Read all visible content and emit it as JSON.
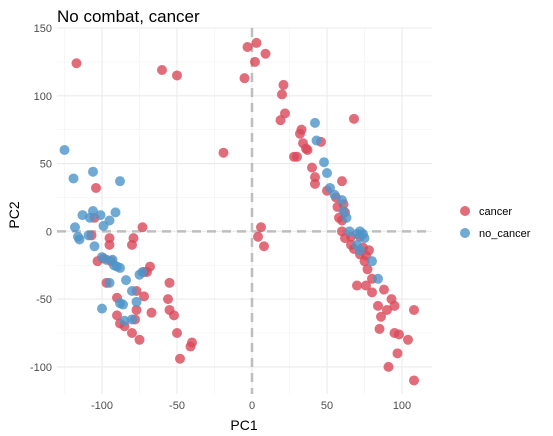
{
  "chart_data": {
    "type": "scatter",
    "title": "No combat, cancer",
    "xlabel": "PC1",
    "ylabel": "PC2",
    "xlim": [
      -130,
      120
    ],
    "ylim": [
      -120,
      150
    ],
    "x_ticks": [
      -100,
      -50,
      0,
      50,
      100
    ],
    "x_tick_labels": [
      "-100",
      "-50",
      "0",
      "50",
      "100"
    ],
    "y_ticks": [
      -100,
      -50,
      0,
      50,
      100,
      150
    ],
    "y_tick_labels": [
      "-100",
      "-50",
      "0",
      "50",
      "100",
      "150"
    ],
    "grid": true,
    "reference_lines": {
      "x": 0,
      "y": 0,
      "style": "dashed",
      "color": "#bebebe"
    },
    "legend_position": "right",
    "series": [
      {
        "name": "cancer",
        "color": "#d9485a",
        "points": [
          [
            -117,
            124
          ],
          [
            -60,
            119
          ],
          [
            -50,
            115
          ],
          [
            -3,
            136
          ],
          [
            -5,
            113
          ],
          [
            3,
            139
          ],
          [
            2,
            125
          ],
          [
            9,
            131
          ],
          [
            -19,
            58
          ],
          [
            21,
            108
          ],
          [
            20,
            101
          ],
          [
            19,
            82
          ],
          [
            22,
            87
          ],
          [
            28,
            55
          ],
          [
            32,
            72
          ],
          [
            33,
            75
          ],
          [
            34,
            65
          ],
          [
            30,
            55
          ],
          [
            36,
            61
          ],
          [
            37,
            60
          ],
          [
            42,
            40
          ],
          [
            42,
            35
          ],
          [
            40,
            47
          ],
          [
            46,
            66
          ],
          [
            50,
            30
          ],
          [
            68,
            83
          ],
          [
            60,
            37
          ],
          [
            56,
            25
          ],
          [
            61,
            20
          ],
          [
            57,
            18
          ],
          [
            62,
            14
          ],
          [
            58,
            10
          ],
          [
            60,
            8
          ],
          [
            66,
            -4
          ],
          [
            66,
            -10
          ],
          [
            68,
            -13
          ],
          [
            72,
            -17
          ],
          [
            76,
            -18
          ],
          [
            75,
            -22
          ],
          [
            78,
            -14
          ],
          [
            60,
            0
          ],
          [
            62,
            -5
          ],
          [
            72,
            -4
          ],
          [
            74,
            -12
          ],
          [
            77,
            -28
          ],
          [
            80,
            -35
          ],
          [
            70,
            -40
          ],
          [
            76,
            -40
          ],
          [
            80,
            -45
          ],
          [
            84,
            -55
          ],
          [
            88,
            -43
          ],
          [
            90,
            -58
          ],
          [
            86,
            -63
          ],
          [
            93,
            -50
          ],
          [
            95,
            -55
          ],
          [
            85,
            -72
          ],
          [
            95,
            -75
          ],
          [
            98,
            -76
          ],
          [
            108,
            -58
          ],
          [
            104,
            -80
          ],
          [
            97,
            -90
          ],
          [
            91,
            -100
          ],
          [
            108,
            -110
          ],
          [
            4,
            -4
          ],
          [
            6,
            3
          ],
          [
            8,
            -11
          ],
          [
            -104,
            32
          ],
          [
            -105,
            10
          ],
          [
            -107,
            -3
          ],
          [
            -103,
            -22
          ],
          [
            -99,
            -20
          ],
          [
            -95,
            -10
          ],
          [
            -94,
            -22
          ],
          [
            -90,
            -49
          ],
          [
            -90,
            -62
          ],
          [
            -88,
            -68
          ],
          [
            -85,
            -70
          ],
          [
            -80,
            -75
          ],
          [
            -78,
            -65
          ],
          [
            -75,
            -80
          ],
          [
            -77,
            -44
          ],
          [
            -72,
            -48
          ],
          [
            -67,
            -60
          ],
          [
            -72,
            -30
          ],
          [
            -70,
            -30
          ],
          [
            -68,
            -26
          ],
          [
            -73,
            3
          ],
          [
            -79,
            -5
          ],
          [
            -80,
            -10
          ],
          [
            -95,
            -5
          ],
          [
            -97,
            -38
          ],
          [
            -77,
            -58
          ],
          [
            -56,
            -50
          ],
          [
            -55,
            -38
          ],
          [
            -55,
            -58
          ],
          [
            -52,
            -62
          ],
          [
            -50,
            -75
          ],
          [
            -48,
            -94
          ],
          [
            -41,
            -85
          ],
          [
            -40,
            -82
          ]
        ]
      },
      {
        "name": "no_cancer",
        "color": "#4c95c9",
        "points": [
          [
            -125,
            60
          ],
          [
            -119,
            39
          ],
          [
            -106,
            44
          ],
          [
            -88,
            37
          ],
          [
            -113,
            12
          ],
          [
            -106,
            15
          ],
          [
            -108,
            10
          ],
          [
            -101,
            12
          ],
          [
            -99,
            4
          ],
          [
            -95,
            8
          ],
          [
            -91,
            14
          ],
          [
            -118,
            3
          ],
          [
            -116,
            -4
          ],
          [
            -115,
            -6
          ],
          [
            -109,
            -3
          ],
          [
            -105,
            -11
          ],
          [
            -100,
            -19
          ],
          [
            -97,
            -21
          ],
          [
            -92,
            -25
          ],
          [
            -90,
            -26
          ],
          [
            -93,
            -21
          ],
          [
            -88,
            -27
          ],
          [
            -84,
            -36
          ],
          [
            -80,
            -44
          ],
          [
            -75,
            -32
          ],
          [
            -73,
            -30
          ],
          [
            -95,
            -38
          ],
          [
            -88,
            -53
          ],
          [
            -86,
            -54
          ],
          [
            -77,
            -52
          ],
          [
            -80,
            -65
          ],
          [
            -100,
            -57
          ],
          [
            -85,
            -66
          ],
          [
            42,
            80
          ],
          [
            43,
            67
          ],
          [
            48,
            51
          ],
          [
            50,
            43
          ],
          [
            52,
            32
          ],
          [
            55,
            27
          ],
          [
            60,
            23
          ],
          [
            61,
            15
          ],
          [
            63,
            10
          ],
          [
            65,
            0
          ],
          [
            70,
            -2
          ],
          [
            72,
            0
          ],
          [
            74,
            -2
          ],
          [
            75,
            -5
          ],
          [
            70,
            -10
          ],
          [
            72,
            -14
          ],
          [
            80,
            -22
          ],
          [
            84,
            -35
          ]
        ]
      }
    ]
  }
}
